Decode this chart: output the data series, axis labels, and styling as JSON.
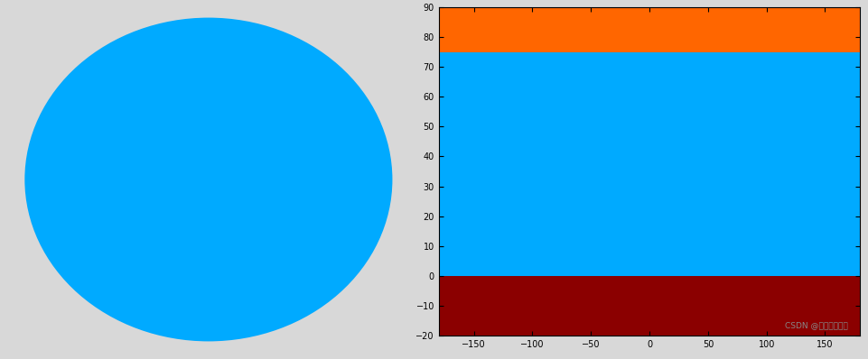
{
  "figure_bg": "#d8d8d8",
  "left_bg": "#00007f",
  "left_ocean": "#00aaff",
  "left_land": "#90ee60",
  "left_snow": "#8b0000",
  "left_highlight_orange": "#ff6600",
  "right_arctic": "#ff6600",
  "right_ocean": "#00aaff",
  "right_land": "#90ee60",
  "right_snow": "#8b0000",
  "right_antarctic": "#8b0000",
  "arctic_lat": 75,
  "equator_lat": 0,
  "watermark": "CSDN @我是水怪的哥",
  "xticks": [
    -150,
    -100,
    -50,
    0,
    50,
    100,
    150
  ],
  "yticks": [
    -20,
    -10,
    0,
    10,
    20,
    30,
    40,
    50,
    60,
    70,
    80,
    90
  ],
  "xlim": [
    -180,
    180
  ],
  "ylim": [
    -20,
    90
  ],
  "robinson_lon": 110
}
